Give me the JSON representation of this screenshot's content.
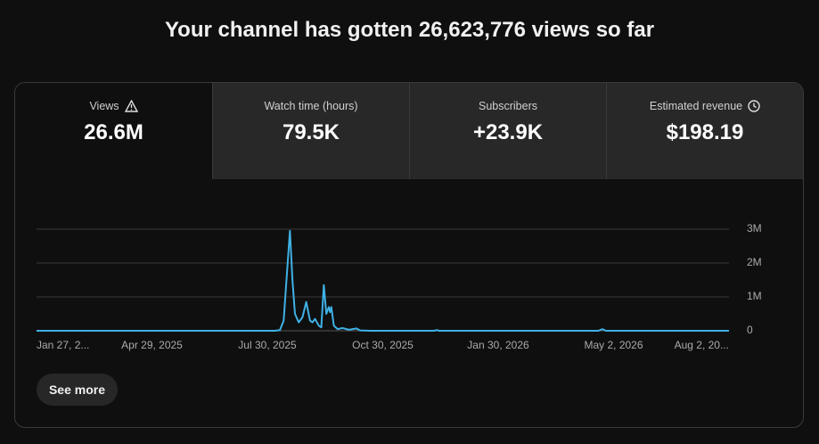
{
  "header": {
    "title": "Your channel has gotten 26,623,776 views so far"
  },
  "tabs": [
    {
      "label": "Views",
      "value": "26.6M"
    },
    {
      "label": "Watch time (hours)",
      "value": "79.5K"
    },
    {
      "label": "Subscribers",
      "value": "+23.9K"
    },
    {
      "label": "Estimated revenue",
      "value": "$198.19"
    }
  ],
  "chart_data": {
    "type": "line",
    "color": "#3fb1e5",
    "grid": true,
    "x": [
      "2025-01-27",
      "2025-08-05",
      "2025-08-09",
      "2025-08-12",
      "2025-08-15",
      "2025-08-17",
      "2025-08-19",
      "2025-08-21",
      "2025-08-24",
      "2025-08-27",
      "2025-08-30",
      "2025-09-02",
      "2025-09-04",
      "2025-09-06",
      "2025-09-09",
      "2025-09-11",
      "2025-09-13",
      "2025-09-15",
      "2025-09-17",
      "2025-09-18",
      "2025-09-19",
      "2025-09-21",
      "2025-09-24",
      "2025-09-28",
      "2025-10-03",
      "2025-10-09",
      "2025-10-12",
      "2025-10-20",
      "2025-12-10",
      "2025-12-12",
      "2025-12-14",
      "2026-04-20",
      "2026-04-23",
      "2026-04-26",
      "2026-08-02"
    ],
    "values": [
      0,
      0,
      20000,
      300000,
      1900000,
      2950000,
      1500000,
      500000,
      250000,
      400000,
      850000,
      300000,
      250000,
      350000,
      150000,
      100000,
      1350000,
      500000,
      700000,
      550000,
      700000,
      150000,
      50000,
      80000,
      30000,
      70000,
      10000,
      0,
      0,
      20000,
      0,
      0,
      50000,
      0,
      0
    ],
    "xlim": [
      "2025-01-27",
      "2026-08-02"
    ],
    "xticks": [
      {
        "value": "2025-01-27",
        "label": "Jan 27, 2..."
      },
      {
        "value": "2025-04-29",
        "label": "Apr 29, 2025"
      },
      {
        "value": "2025-07-30",
        "label": "Jul 30, 2025"
      },
      {
        "value": "2025-10-30",
        "label": "Oct 30, 2025"
      },
      {
        "value": "2026-01-30",
        "label": "Jan 30, 2026"
      },
      {
        "value": "2026-05-02",
        "label": "May 2, 2026"
      },
      {
        "value": "2026-08-02",
        "label": "Aug 2, 20..."
      }
    ],
    "ylim": [
      0,
      3000000
    ],
    "yticks": [
      {
        "value": 0,
        "label": "0"
      },
      {
        "value": 1000000,
        "label": "1M"
      },
      {
        "value": 2000000,
        "label": "2M"
      },
      {
        "value": 3000000,
        "label": "3M"
      }
    ]
  },
  "button": {
    "label": "See more"
  }
}
